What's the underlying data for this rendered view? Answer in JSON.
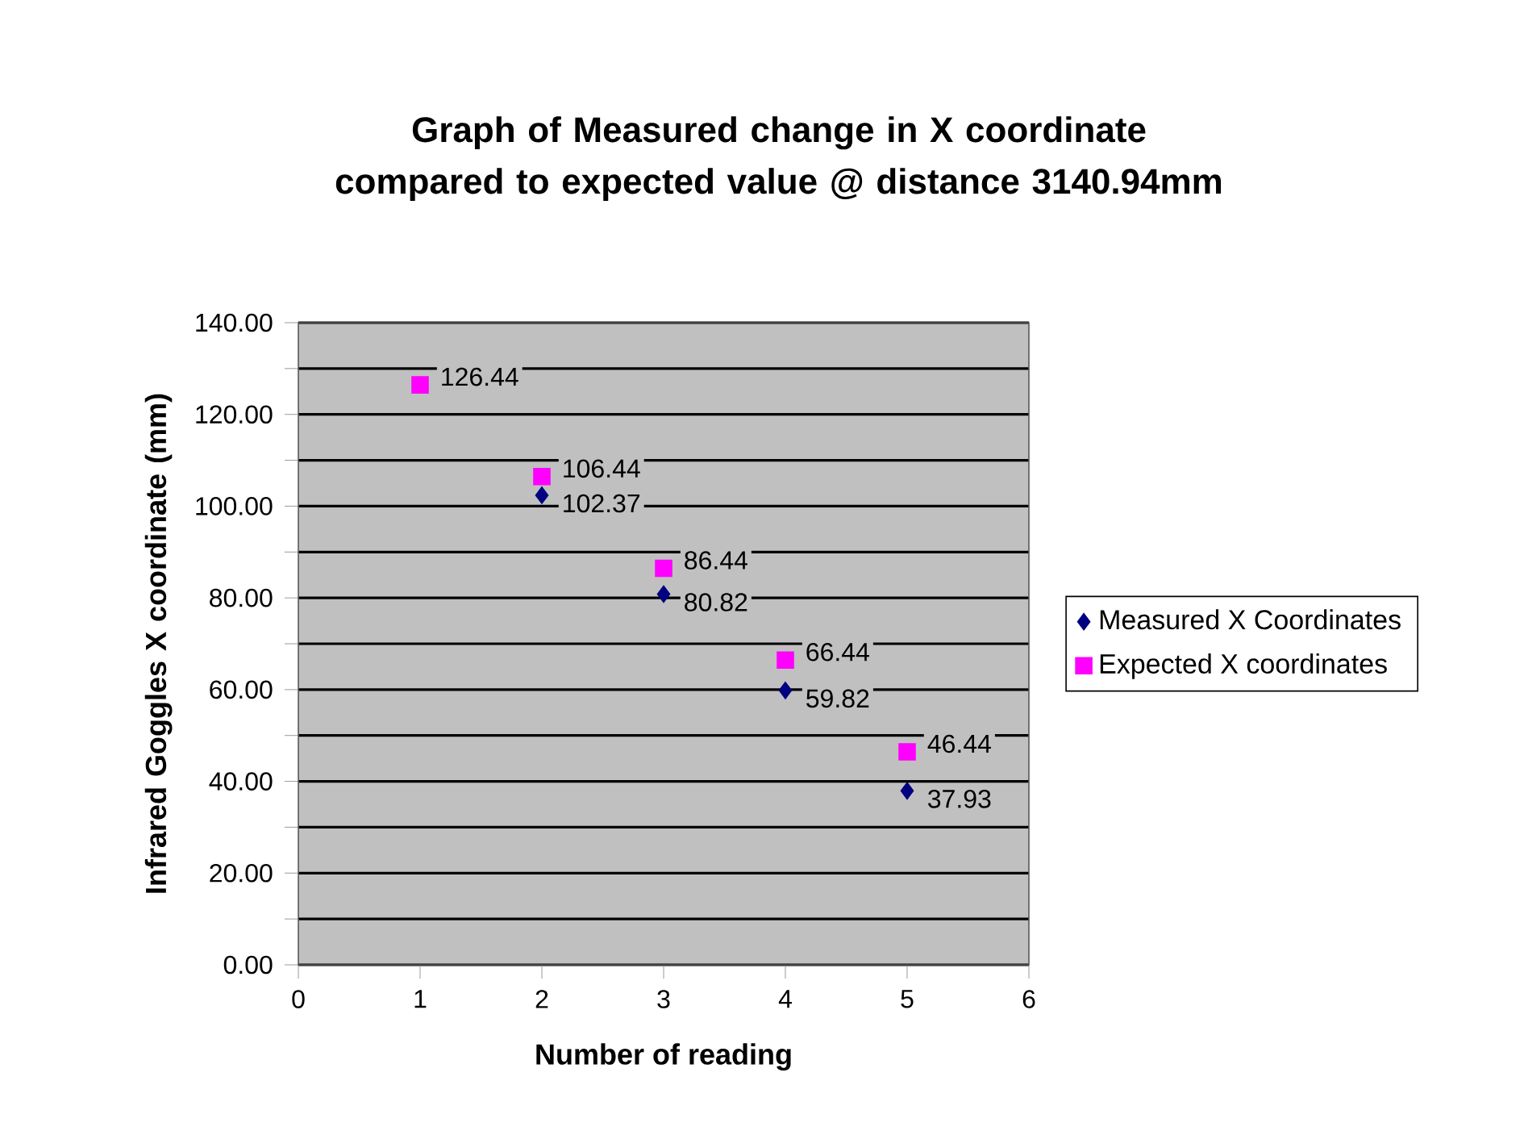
{
  "chart_data": {
    "type": "scatter",
    "title": "Graph of Measured change in  X coordinate compared to expected value @ distance 3140.94mm",
    "xlabel": "Number of reading",
    "ylabel": "Infrared Goggles X coordinate (mm)",
    "x": [
      1,
      2,
      3,
      4,
      5
    ],
    "series": [
      {
        "name": "Measured X Coordinates",
        "color": "#000080",
        "marker": "diamond",
        "values": [
          null,
          102.37,
          80.82,
          59.82,
          37.93
        ],
        "value_labels": [
          null,
          "102.37",
          "80.82",
          "59.82",
          "37.93"
        ]
      },
      {
        "name": "Expected X coordinates",
        "color": "#ff00ff",
        "marker": "square",
        "values": [
          126.44,
          106.44,
          86.44,
          66.44,
          46.44
        ],
        "value_labels": [
          "126.44",
          "106.44",
          "86.44",
          "66.44",
          "46.44"
        ]
      }
    ],
    "xlim": [
      0,
      6
    ],
    "xticks": [
      0,
      1,
      2,
      3,
      4,
      5,
      6
    ],
    "ylim": [
      0,
      140
    ],
    "yticks": [
      {
        "value": 0,
        "label": "0.00"
      },
      {
        "value": 10,
        "label": null
      },
      {
        "value": 20,
        "label": "20.00"
      },
      {
        "value": 30,
        "label": null
      },
      {
        "value": 40,
        "label": "40.00"
      },
      {
        "value": 50,
        "label": null
      },
      {
        "value": 60,
        "label": "60.00"
      },
      {
        "value": 70,
        "label": null
      },
      {
        "value": 80,
        "label": "80.00"
      },
      {
        "value": 90,
        "label": null
      },
      {
        "value": 100,
        "label": "100.00"
      },
      {
        "value": 110,
        "label": null
      },
      {
        "value": 120,
        "label": "120.00"
      },
      {
        "value": 130,
        "label": null
      },
      {
        "value": 140,
        "label": "140.00"
      }
    ],
    "grid": "y",
    "legend": "right"
  }
}
